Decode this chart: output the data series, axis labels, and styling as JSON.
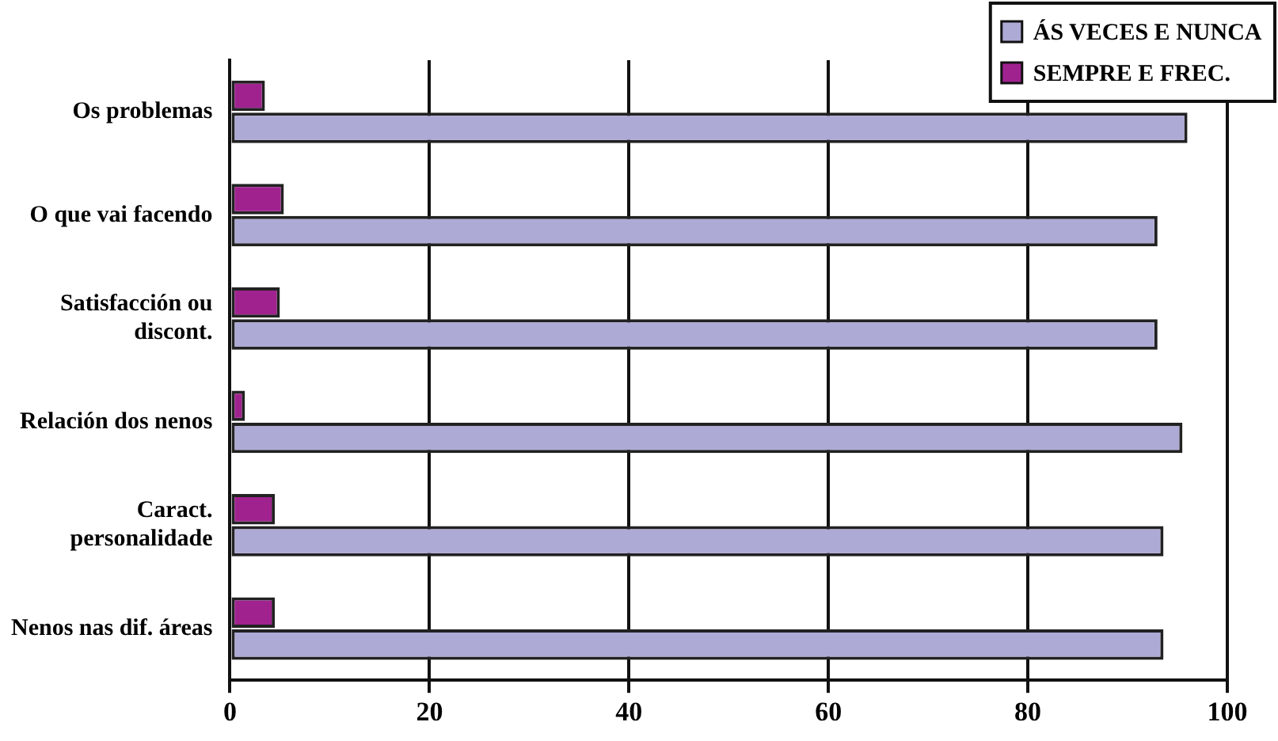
{
  "chart_data": {
    "type": "bar",
    "orientation": "horizontal",
    "categories": [
      "Os problemas",
      "O que vai facendo",
      "Satisfacción ou\ndiscont.",
      "Relación dos nenos",
      "Caract.\npersonalidade",
      "Nenos nas dif. áreas"
    ],
    "series": [
      {
        "name": "SEMPRE E FREC.",
        "color": "#a0228f",
        "values": [
          3.5,
          5.4,
          5.0,
          1.5,
          4.5,
          4.5
        ]
      },
      {
        "name": "ÁS VECES E NUNCA",
        "color": "#aeaad6",
        "values": [
          96.0,
          93.0,
          93.0,
          95.5,
          93.6,
          93.6
        ]
      }
    ],
    "xlim": [
      0,
      100
    ],
    "xticks": [
      0,
      20,
      40,
      60,
      80,
      100
    ],
    "grid": "x",
    "legend": "top right"
  }
}
